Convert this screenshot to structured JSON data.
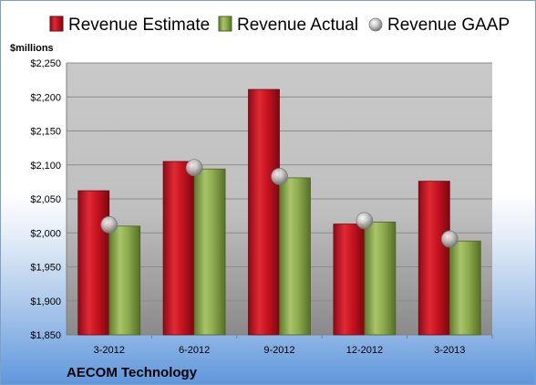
{
  "chart_data": {
    "type": "bar",
    "unit_label": "$millions",
    "company": "AECOM Technology",
    "categories": [
      "3-2012",
      "6-2012",
      "9-2012",
      "12-2012",
      "3-2013"
    ],
    "series": [
      {
        "name": "Revenue Estimate",
        "kind": "bar",
        "color": "#c0101e",
        "values": [
          2062,
          2105,
          2211,
          2013,
          2076
        ]
      },
      {
        "name": "Revenue Actual",
        "kind": "bar",
        "color": "#8fac4f",
        "values": [
          2010,
          2094,
          2081,
          2016,
          1988
        ]
      },
      {
        "name": "Revenue GAAP",
        "kind": "marker",
        "color": "#b8b8b8",
        "values": [
          2012,
          2096,
          2083,
          2018,
          1991
        ]
      }
    ],
    "ylim": [
      1850,
      2250
    ],
    "yticks": [
      1850,
      1900,
      1950,
      2000,
      2050,
      2100,
      2150,
      2200,
      2250
    ],
    "ytick_labels": [
      "$1,850",
      "$1,900",
      "$1,950",
      "$2,000",
      "$2,050",
      "$2,100",
      "$2,150",
      "$2,200",
      "$2,250"
    ],
    "grid": true,
    "legend_position": "top"
  }
}
